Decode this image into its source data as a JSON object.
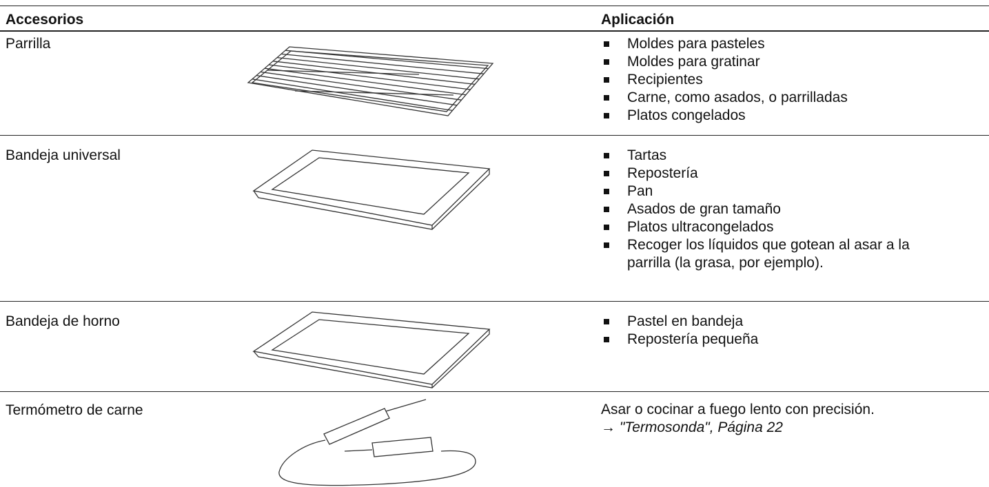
{
  "table": {
    "header": [
      "Accesorios",
      "Aplicación"
    ],
    "rows": [
      {
        "name": "Parrilla",
        "items": [
          "Moldes para pasteles",
          "Moldes para gratinar",
          "Recipientes",
          "Carne, como asados, o parrilladas",
          "Platos congelados"
        ]
      },
      {
        "name": "Bandeja universal",
        "items": [
          "Tartas",
          "Repostería",
          "Pan",
          "Asados de gran tamaño",
          "Platos ultracongelados",
          "Recoger los líquidos que gotean al asar a la parrilla (la grasa, por ejemplo)."
        ]
      },
      {
        "name": "Bandeja de horno",
        "items": [
          "Pastel en bandeja",
          "Repostería pequeña"
        ]
      },
      {
        "name": "Termómetro de carne",
        "text": "Asar o cocinar a fuego lento con precisión.",
        "reference": "→ \"Termosonda\", Página 22"
      }
    ]
  }
}
